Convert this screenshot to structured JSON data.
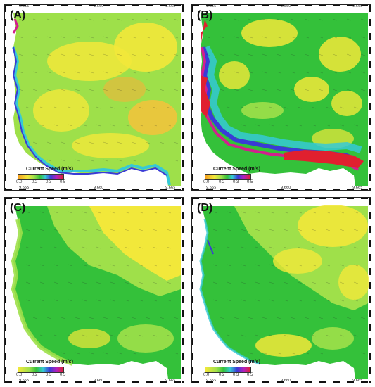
{
  "legend": {
    "title": "Current Speed (m/s)",
    "ticks": [
      "0.0",
      "0.2",
      "0.3",
      "0.5"
    ]
  },
  "axis": {
    "x_ticks": [
      "9.655",
      "9.660",
      "9.665"
    ]
  },
  "panels": [
    {
      "label": "(A)",
      "palette": "speed-A"
    },
    {
      "label": "(B)",
      "palette": "speed-B"
    },
    {
      "label": "(C)",
      "palette": "speed-C"
    },
    {
      "label": "(D)",
      "palette": "speed-D"
    }
  ],
  "colors": {
    "yellow": "#f2e83a",
    "orange": "#f4b23b",
    "green": "#34c13a",
    "lightgreen": "#9fe04a",
    "cyan": "#36c9d6",
    "blue": "#3a3bd6",
    "magenta": "#d21f8e",
    "red": "#e0202f"
  }
}
